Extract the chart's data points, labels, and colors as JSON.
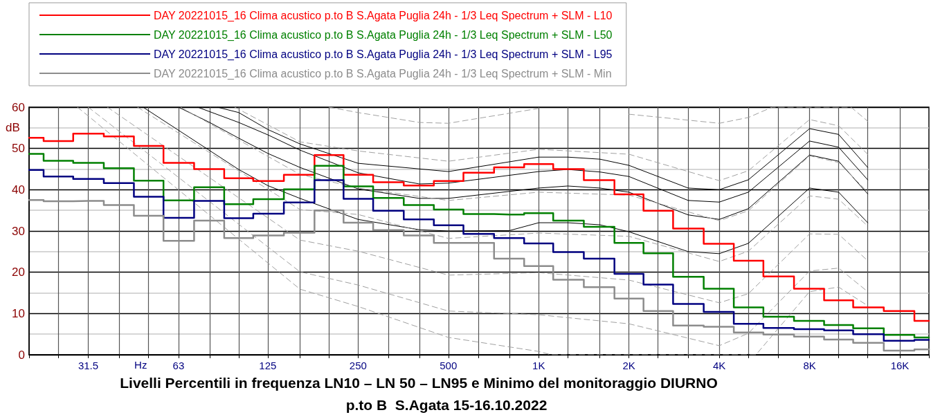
{
  "chart_data": {
    "type": "step",
    "title": "Livelli Percentili in frequenza LN10 – LN 50 – LN95 e Minimo del monitoraggio DIURNO",
    "subtitle": "p.to B  S.Agata 15-16.10.2022",
    "ylabel": "dB",
    "annotations": [
      "Hz"
    ],
    "log": "x",
    "xlim": [
      20,
      20000
    ],
    "xticks": [
      {
        "value": 20,
        "label": null
      },
      {
        "value": 25,
        "label": null
      },
      31.5,
      {
        "value": 40,
        "label": null
      },
      {
        "value": 50,
        "label": null
      },
      63,
      {
        "value": 80,
        "label": null
      },
      {
        "value": 100,
        "label": null
      },
      125,
      {
        "value": 160,
        "label": null
      },
      {
        "value": 200,
        "label": null
      },
      250,
      {
        "value": 315,
        "label": null
      },
      {
        "value": 400,
        "label": null
      },
      500,
      {
        "value": 630,
        "label": null
      },
      {
        "value": 800,
        "label": null
      },
      {
        "value": 1000,
        "label": "1K"
      },
      {
        "value": 1250,
        "label": null
      },
      {
        "value": 1600,
        "label": null
      },
      {
        "value": 2000,
        "label": "2K"
      },
      {
        "value": 2500,
        "label": null
      },
      {
        "value": 3150,
        "label": null
      },
      {
        "value": 4000,
        "label": "4K"
      },
      {
        "value": 5000,
        "label": null
      },
      {
        "value": 6300,
        "label": null
      },
      {
        "value": 8000,
        "label": "8K"
      },
      {
        "value": 10000,
        "label": null
      },
      {
        "value": 12500,
        "label": null
      },
      {
        "value": 16000,
        "label": "16K"
      },
      {
        "value": 20000,
        "label": null
      }
    ],
    "ylim": [
      0,
      60
    ],
    "yticks": [
      0,
      10,
      20,
      30,
      40,
      50,
      60
    ],
    "grid": true,
    "legend": "top",
    "marker": "none",
    "x": [
      20,
      25,
      31.5,
      40,
      50,
      63,
      80,
      100,
      125,
      160,
      200,
      250,
      315,
      400,
      500,
      630,
      800,
      1000,
      1250,
      1600,
      2000,
      2500,
      3150,
      4000,
      5000,
      6300,
      8000,
      10000,
      12500,
      16000,
      20000
    ],
    "series": [
      {
        "name": "DAY 20221015_16 Clima acustico p.to B S.Agata Puglia 24h - 1/3 Leq Spectrum + SLM - L10",
        "color": "#ff0000",
        "values": [
          52.6,
          51.8,
          53.6,
          52.9,
          50.6,
          46.5,
          45,
          42.8,
          42.1,
          43.6,
          48.4,
          43.6,
          41.8,
          41,
          42.1,
          44.1,
          45.4,
          46.2,
          45,
          42.3,
          38.9,
          34.9,
          30.6,
          26.9,
          22.8,
          19,
          16,
          13.2,
          11.5,
          10.6,
          8.2
        ]
      },
      {
        "name": "DAY 20221015_16 Clima acustico p.to B S.Agata Puglia 24h - 1/3 Leq Spectrum + SLM - L50",
        "color": "#008000",
        "values": [
          48.7,
          47,
          46.5,
          45.2,
          42.2,
          37.4,
          40.6,
          36.5,
          37.7,
          40.1,
          45.8,
          40.8,
          38,
          36.3,
          35.2,
          34.1,
          34,
          34.3,
          32.5,
          31,
          27.1,
          24.6,
          18.9,
          16,
          11.5,
          9.2,
          8.2,
          7.2,
          6.4,
          4.8,
          4.2
        ]
      },
      {
        "name": "DAY 20221015_16 Clima acustico p.to B S.Agata Puglia 24h - 1/3 Leq Spectrum + SLM - L95",
        "color": "#000080",
        "values": [
          44.8,
          43.2,
          42.6,
          41.6,
          38.3,
          33.2,
          37.3,
          33.1,
          34.2,
          36.9,
          42.3,
          37.8,
          34.9,
          32.8,
          31.4,
          29.3,
          28.3,
          27,
          24.9,
          23.3,
          19.6,
          17,
          12.3,
          10.4,
          7.5,
          6.5,
          6.2,
          5.9,
          5,
          3.4,
          3.6
        ]
      },
      {
        "name": "DAY 20221015_16 Clima acustico p.to B S.Agata Puglia 24h - 1/3 Leq Spectrum + SLM - Min",
        "color": "#8c8c8c",
        "values": [
          37.5,
          37.2,
          37.3,
          36.3,
          33.7,
          27.6,
          32.5,
          28.3,
          28.9,
          29.6,
          35,
          32,
          30.2,
          28.9,
          27.1,
          27.1,
          23.3,
          21.5,
          18.2,
          16.4,
          13.6,
          10.6,
          7.1,
          6.8,
          5.4,
          4.9,
          4.4,
          3.7,
          2.9,
          1,
          1.3
        ]
      },
      {
        "type": "line",
        "color": "#000000",
        "line_style": "solid",
        "x": [
          85,
          100,
          125,
          160,
          250,
          500,
          1000,
          1250,
          1600,
          2000,
          3150,
          4000,
          5000,
          8000,
          10000,
          12500
        ],
        "values": [
          60,
          58.7,
          54.6,
          51.1,
          46.4,
          44.4,
          47.9,
          47.9,
          47.4,
          45.9,
          40.4,
          40,
          42.4,
          54.8,
          53.4,
          45.4
        ]
      },
      {
        "type": "line",
        "color": "#000000",
        "line_style": "solid",
        "x": [
          73,
          100,
          125,
          160,
          250,
          400,
          500,
          1000,
          1250,
          1600,
          2000,
          3150,
          4000,
          5000,
          8000,
          10000,
          12500
        ],
        "values": [
          60,
          56.3,
          53.3,
          49.6,
          44.1,
          41.4,
          41.6,
          44.4,
          44.9,
          44.3,
          43.2,
          37.4,
          37,
          39.4,
          51.8,
          50.3,
          42.4
        ]
      },
      {
        "type": "line",
        "color": "#000000",
        "line_style": "solid",
        "x": [
          63,
          80,
          100,
          125,
          160,
          250,
          400,
          500,
          1000,
          1250,
          1600,
          2000,
          3150,
          4000,
          5000,
          8000,
          10000,
          12500
        ],
        "values": [
          60,
          56.3,
          52.5,
          48.8,
          45.4,
          40.2,
          37.9,
          37.9,
          40.4,
          40.9,
          40.4,
          39.4,
          33.9,
          32.8,
          35.4,
          48.4,
          46.9,
          39
        ]
      },
      {
        "type": "line",
        "color": "#000000",
        "line_style": "solid",
        "x": [
          48,
          100,
          125,
          160,
          250,
          400,
          500,
          800,
          1000,
          1250,
          1600,
          2000,
          3150,
          4000,
          5000,
          8000,
          10000,
          12500
        ],
        "values": [
          60,
          44.9,
          41,
          37.9,
          32.8,
          30.3,
          30,
          30.1,
          32,
          32,
          31.5,
          29.8,
          25,
          24.5,
          27,
          40.4,
          39.4,
          32
        ]
      },
      {
        "type": "line",
        "color": "#a0a0a0",
        "line_style": "dashed",
        "x": [
          200,
          250,
          400,
          500,
          1000,
          1300,
          2000,
          4000,
          5000,
          6000,
          11000,
          12500
        ],
        "values": [
          60,
          58.7,
          56.3,
          56.1,
          59.7,
          null,
          58.3,
          56.1,
          57.5,
          60,
          60,
          56.6
        ]
      },
      {
        "type": "line",
        "color": "#a0a0a0",
        "line_style": "dashed",
        "x": [
          97,
          160,
          250,
          500,
          1000,
          2000,
          4000,
          5000,
          8000,
          10000,
          12500
        ],
        "values": [
          60,
          51.6,
          49.4,
          46.9,
          49.8,
          48.6,
          42.2,
          44.6,
          57,
          55.5,
          48.6
        ]
      },
      {
        "type": "line",
        "color": "#a0a0a0",
        "line_style": "dashed",
        "x": [
          64,
          160,
          250,
          500,
          1000,
          2000,
          4000,
          5000,
          8000,
          10000,
          12500
        ],
        "values": [
          60,
          43.7,
          40.4,
          37.4,
          39.4,
          38.7,
          32.5,
          34.9,
          48.2,
          46.6,
          39.4
        ]
      },
      {
        "type": "line",
        "color": "#a0a0a0",
        "line_style": "dashed",
        "x": [
          46,
          160,
          250,
          500,
          1000,
          2000,
          4000,
          5000,
          8000,
          10000,
          12500
        ],
        "values": [
          60,
          35.2,
          34,
          28.2,
          29.5,
          28.7,
          22.6,
          25.1,
          38.5,
          37.7,
          31.2
        ]
      },
      {
        "type": "line",
        "color": "#a0a0a0",
        "line_style": "dashed",
        "x": [
          36.5,
          160,
          250,
          500,
          1000,
          2000,
          4000,
          5000,
          8000,
          10000,
          12500
        ],
        "values": [
          60,
          27.8,
          25.1,
          19.3,
          19.9,
          18.1,
          12.6,
          14.8,
          29.3,
          29.2,
          22.8
        ]
      },
      {
        "type": "line",
        "color": "#a0a0a0",
        "line_style": "dashed",
        "x": [
          31.5,
          160,
          250,
          500,
          1000,
          2000,
          4000,
          5000,
          8000,
          10000,
          12500
        ],
        "values": [
          60,
          20.1,
          16.9,
          10.6,
          9.7,
          7.5,
          2.2,
          5.2,
          20.3,
          21,
          15.3
        ]
      },
      {
        "type": "line",
        "color": "#a0a0a0",
        "line_style": "dashed",
        "x": [
          29,
          160,
          250,
          500,
          1000,
          1100,
          5300,
          8000,
          10000,
          12500
        ],
        "values": [
          60,
          15.9,
          11.7,
          4.2,
          0.8,
          0,
          0,
          15.3,
          16.4,
          11.9
        ]
      }
    ]
  }
}
